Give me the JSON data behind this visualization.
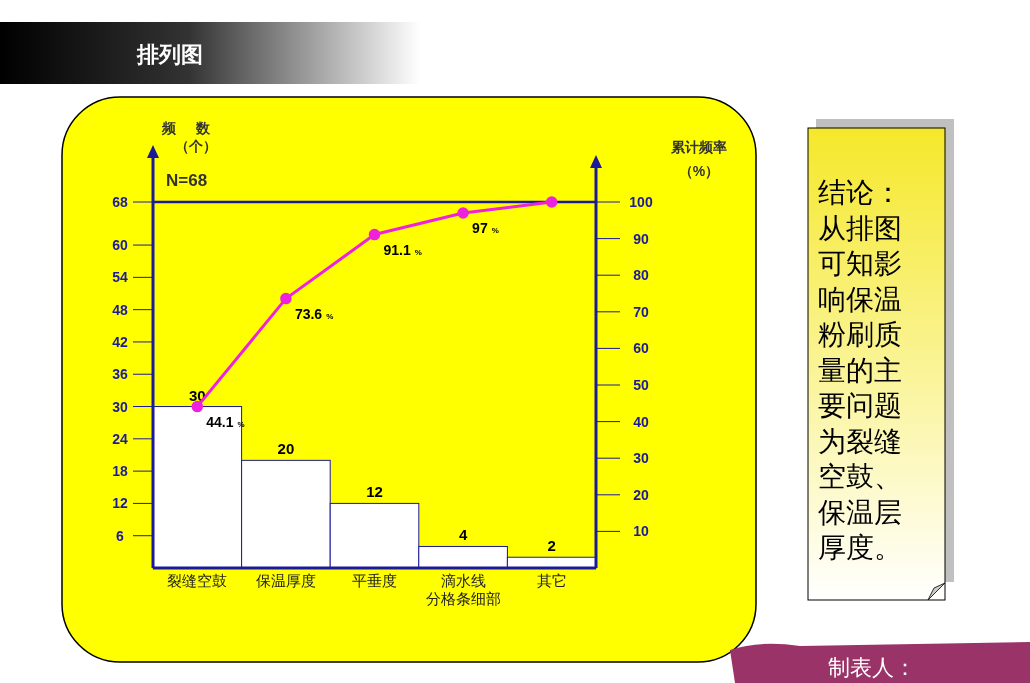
{
  "chart_data": {
    "type": "bar",
    "title": "排列图",
    "ylabel": "频数（个）",
    "y2label": "累计频率（%）",
    "categories": [
      "裂缝空鼓",
      "保温厚度",
      "平垂度",
      "滴水线分格条细部",
      "其它"
    ],
    "series": [
      {
        "color": "#ffffff",
        "values": [
          30,
          20,
          12,
          4,
          2
        ],
        "value_labels": [
          "30",
          "20",
          "12",
          "4",
          "2"
        ]
      },
      {
        "type": "line",
        "axis": "y2",
        "color": "#ee22dd",
        "values": [
          44.1,
          73.6,
          91.1,
          97,
          100
        ],
        "value_labels": [
          "44.1 %",
          "73.6 %",
          "91.1 %",
          "97 %",
          null
        ]
      }
    ],
    "ylim": [
      0,
      68
    ],
    "yticks": [
      6,
      12,
      18,
      24,
      30,
      36,
      42,
      48,
      54,
      60,
      68
    ],
    "y2lim": [
      0,
      100
    ],
    "y2ticks": [
      10,
      20,
      30,
      40,
      50,
      60,
      70,
      80,
      90,
      100
    ],
    "ref_lines": [
      {
        "axis": "y",
        "value": 68,
        "color": "#1a1a9a"
      }
    ],
    "marker": "circle",
    "legend": false,
    "grid": false,
    "annotations": [
      "N=68",
      "结论：从排图可知影响保温粉刷质量的主要问题为裂缝空鼓、保温层厚度。",
      "制表人："
    ]
  }
}
